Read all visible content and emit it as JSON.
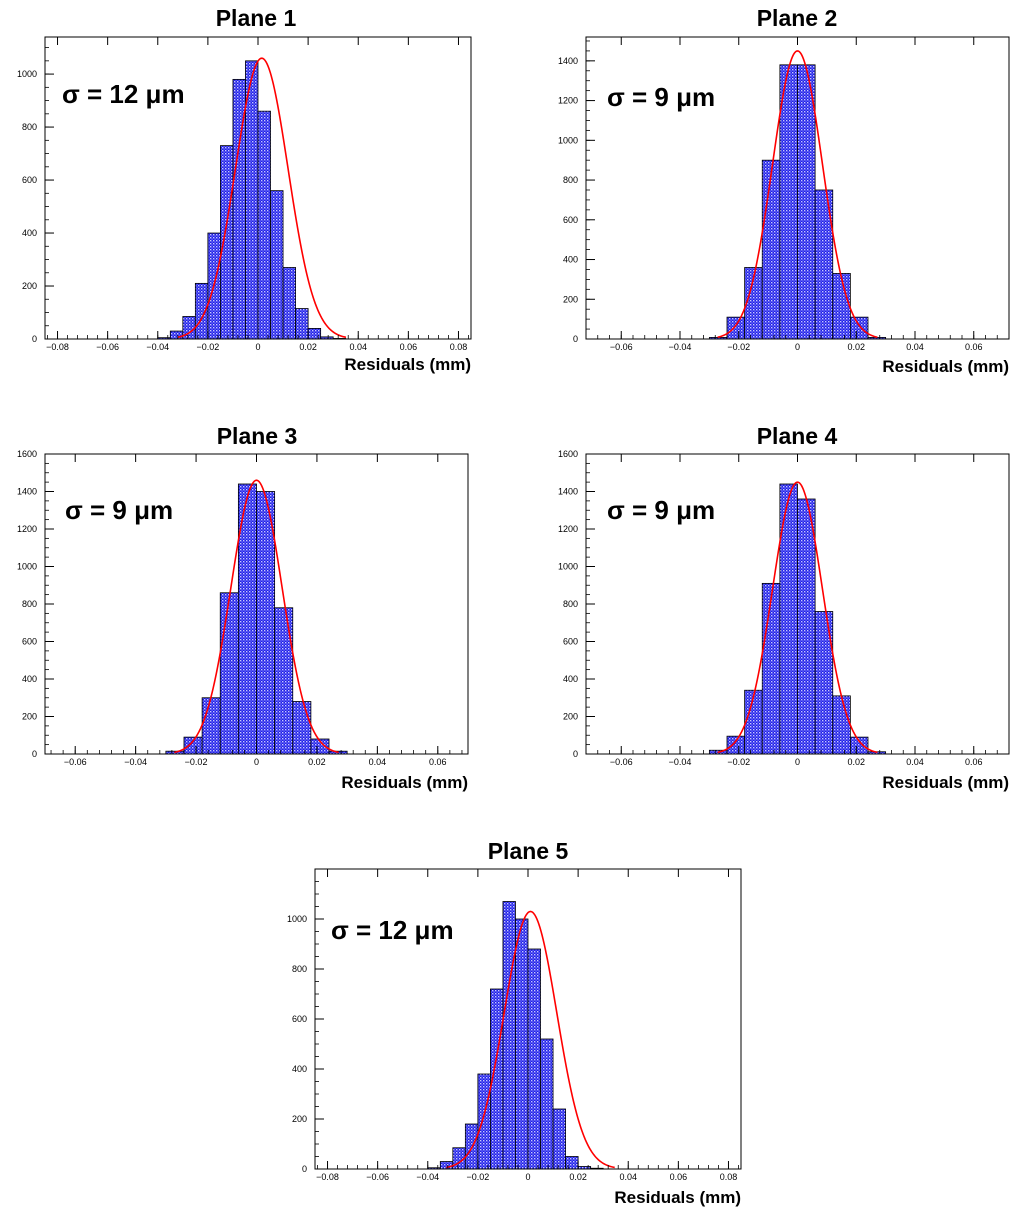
{
  "colors": {
    "bar_fill": "#1f1fe6",
    "bar_hatch": "#c8c8ff",
    "bar_edge": "#000000",
    "fit_line": "#ff0000",
    "axis": "#000000"
  },
  "chart_data": [
    {
      "type": "bar",
      "title": "Plane 1",
      "annotation": "σ = 12 μm",
      "xlabel": "Residuals (mm)",
      "ylabel": "",
      "xlim": [
        -0.085,
        0.085
      ],
      "ylim": [
        0,
        1140
      ],
      "xticks": [
        -0.08,
        -0.06,
        -0.04,
        -0.02,
        0,
        0.02,
        0.04,
        0.06,
        0.08
      ],
      "xtick_labels": [
        "-0.08",
        "-0.06",
        "-0.04",
        "-0.02",
        "0",
        "0.02",
        "0.04",
        "0.06",
        "0.08"
      ],
      "yticks": [
        0,
        200,
        400,
        600,
        800,
        1000
      ],
      "bin_edges": [
        -0.04,
        -0.035,
        -0.03,
        -0.025,
        -0.02,
        -0.015,
        -0.01,
        -0.005,
        0,
        0.005,
        0.01,
        0.015,
        0.02,
        0.025,
        0.03,
        0.035,
        0.04
      ],
      "values": [
        5,
        30,
        85,
        210,
        400,
        730,
        980,
        1050,
        860,
        560,
        270,
        115,
        40,
        8,
        2,
        0
      ],
      "fit": {
        "type": "gaussian",
        "amplitude": 1060,
        "mean": 0.0015,
        "sigma": 0.0105
      }
    },
    {
      "type": "bar",
      "title": "Plane 2",
      "annotation": "σ = 9 μm",
      "xlabel": "Residuals (mm)",
      "ylabel": "",
      "xlim": [
        -0.072,
        0.072
      ],
      "ylim": [
        0,
        1520
      ],
      "xticks": [
        -0.06,
        -0.04,
        -0.02,
        0,
        0.02,
        0.04,
        0.06
      ],
      "xtick_labels": [
        "-0.06",
        "-0.04",
        "-0.02",
        "0",
        "0.02",
        "0.04",
        "0.06"
      ],
      "yticks": [
        0,
        200,
        400,
        600,
        800,
        1000,
        1200,
        1400
      ],
      "bin_edges": [
        -0.03,
        -0.024,
        -0.018,
        -0.012,
        -0.006,
        0,
        0.006,
        0.012,
        0.018,
        0.024,
        0.03
      ],
      "values": [
        8,
        110,
        360,
        900,
        1380,
        1380,
        750,
        330,
        110,
        8
      ],
      "fit": {
        "type": "gaussian",
        "amplitude": 1450,
        "mean": 0.0,
        "sigma": 0.0085
      }
    },
    {
      "type": "bar",
      "title": "Plane 3",
      "annotation": "σ = 9 μm",
      "xlabel": "Residuals (mm)",
      "ylabel": "",
      "xlim": [
        -0.07,
        0.07
      ],
      "ylim": [
        0,
        1600
      ],
      "xticks": [
        -0.06,
        -0.04,
        -0.02,
        0,
        0.02,
        0.04,
        0.06
      ],
      "xtick_labels": [
        "-0.06",
        "-0.04",
        "-0.02",
        "0",
        "0.02",
        "0.04",
        "0.06"
      ],
      "yticks": [
        0,
        200,
        400,
        600,
        800,
        1000,
        1200,
        1400,
        1600
      ],
      "bin_edges": [
        -0.03,
        -0.024,
        -0.018,
        -0.012,
        -0.006,
        0,
        0.006,
        0.012,
        0.018,
        0.024,
        0.03
      ],
      "values": [
        15,
        90,
        300,
        860,
        1440,
        1400,
        780,
        280,
        80,
        15
      ],
      "fit": {
        "type": "gaussian",
        "amplitude": 1460,
        "mean": 0.0,
        "sigma": 0.0085
      }
    },
    {
      "type": "bar",
      "title": "Plane 4",
      "annotation": "σ = 9 μm",
      "xlabel": "Residuals (mm)",
      "ylabel": "",
      "xlim": [
        -0.072,
        0.072
      ],
      "ylim": [
        0,
        1600
      ],
      "xticks": [
        -0.06,
        -0.04,
        -0.02,
        0,
        0.02,
        0.04,
        0.06
      ],
      "xtick_labels": [
        "-0.06",
        "-0.04",
        "-0.02",
        "0",
        "0.02",
        "0.04",
        "0.06"
      ],
      "yticks": [
        0,
        200,
        400,
        600,
        800,
        1000,
        1200,
        1400,
        1600
      ],
      "bin_edges": [
        -0.03,
        -0.024,
        -0.018,
        -0.012,
        -0.006,
        0,
        0.006,
        0.012,
        0.018,
        0.024,
        0.03
      ],
      "values": [
        20,
        95,
        340,
        910,
        1440,
        1360,
        760,
        310,
        90,
        12
      ],
      "fit": {
        "type": "gaussian",
        "amplitude": 1450,
        "mean": 0.0,
        "sigma": 0.0085
      }
    },
    {
      "type": "bar",
      "title": "Plane 5",
      "annotation": "σ = 12 μm",
      "xlabel": "Residuals (mm)",
      "ylabel": "",
      "xlim": [
        -0.085,
        0.085
      ],
      "ylim": [
        0,
        1200
      ],
      "xticks": [
        -0.08,
        -0.06,
        -0.04,
        -0.02,
        0,
        0.02,
        0.04,
        0.06,
        0.08
      ],
      "xtick_labels": [
        "-0.08",
        "-0.06",
        "-0.04",
        "-0.02",
        "0",
        "0.02",
        "0.04",
        "0.06",
        "0.08"
      ],
      "yticks": [
        0,
        200,
        400,
        600,
        800,
        1000
      ],
      "bin_edges": [
        -0.04,
        -0.035,
        -0.03,
        -0.025,
        -0.02,
        -0.015,
        -0.01,
        -0.005,
        0,
        0.005,
        0.01,
        0.015,
        0.02,
        0.025,
        0.03,
        0.035,
        0.04
      ],
      "values": [
        5,
        30,
        85,
        180,
        380,
        720,
        1070,
        1000,
        880,
        520,
        240,
        50,
        10,
        3,
        0,
        0
      ],
      "fit": {
        "type": "gaussian",
        "amplitude": 1030,
        "mean": 0.001,
        "sigma": 0.0105
      }
    }
  ]
}
